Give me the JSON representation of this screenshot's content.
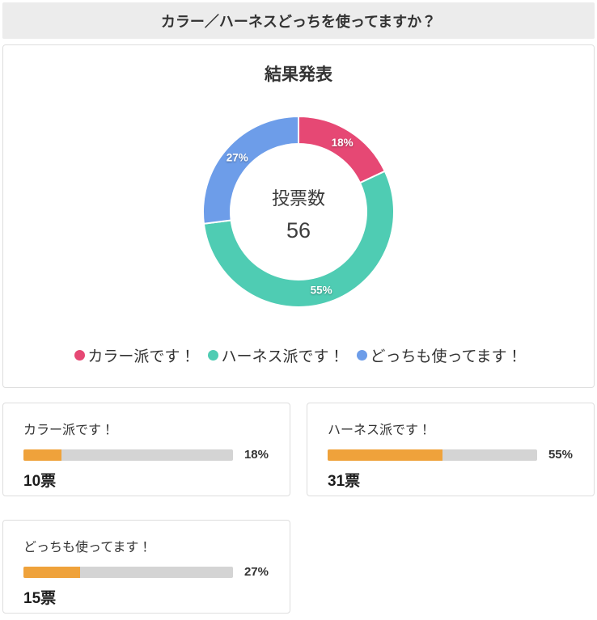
{
  "header": {
    "title": "カラー／ハーネスどっちを使ってますか？"
  },
  "chart_data": {
    "type": "pie",
    "style": "donut",
    "title": "結果発表",
    "center": {
      "label": "投票数",
      "value": "56"
    },
    "start_angle": "top",
    "direction": "clockwise",
    "legend_position": "bottom",
    "series": [
      {
        "label": "カラー派です！",
        "percent": 18,
        "votes": 10,
        "color": "#e64874"
      },
      {
        "label": "ハーネス派です！",
        "percent": 55,
        "votes": 31,
        "color": "#4fccb3"
      },
      {
        "label": "どっちも使ってます！",
        "percent": 27,
        "votes": 15,
        "color": "#6d9de9"
      }
    ]
  },
  "results": {
    "bar_color": "#efa23b",
    "track_color": "#d4d4d4",
    "cards": [
      {
        "label": "カラー派です！",
        "percent": 18,
        "percent_label": "18%",
        "votes_label": "10票"
      },
      {
        "label": "ハーネス派です！",
        "percent": 55,
        "percent_label": "55%",
        "votes_label": "31票"
      },
      {
        "label": "どっちも使ってます！",
        "percent": 27,
        "percent_label": "27%",
        "votes_label": "15票"
      }
    ]
  }
}
